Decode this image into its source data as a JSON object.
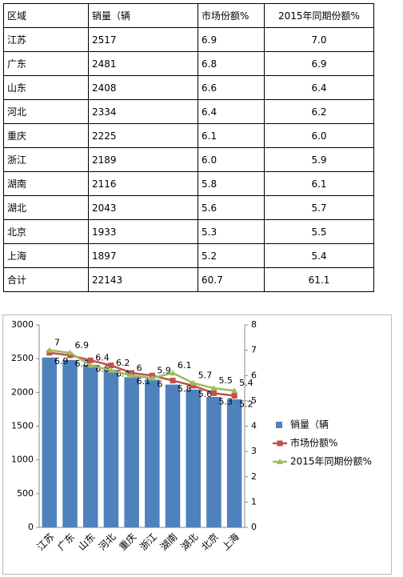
{
  "table": {
    "header": [
      "区域",
      "销量（辆",
      "市场份额%",
      "2015年同期份额%"
    ],
    "rows": [
      [
        "江苏",
        "2517",
        "6.9",
        "7.0"
      ],
      [
        "广东",
        "2481",
        "6.8",
        "6.9"
      ],
      [
        "山东",
        "2408",
        "6.6",
        "6.4"
      ],
      [
        "河北",
        "2334",
        "6.4",
        "6.2"
      ],
      [
        "重庆",
        "2225",
        "6.1",
        "6.0"
      ],
      [
        "浙江",
        "2189",
        "6.0",
        "5.9"
      ],
      [
        "湖南",
        "2116",
        "5.8",
        "6.1"
      ],
      [
        "湖北",
        "2043",
        "5.6",
        "5.7"
      ],
      [
        "北京",
        "1933",
        "5.3",
        "5.5"
      ],
      [
        "上海",
        "1897",
        "5.2",
        "5.4"
      ],
      [
        "合计",
        "22143",
        "60.7",
        "61.1"
      ]
    ]
  },
  "chart_data": {
    "type": "bar",
    "categories": [
      "江苏",
      "广东",
      "山东",
      "河北",
      "重庆",
      "浙江",
      "湖南",
      "湖北",
      "北京",
      "上海"
    ],
    "series": [
      {
        "name": "销量（辆",
        "color": "#4f81bd",
        "type": "bar",
        "values": [
          2517,
          2481,
          2408,
          2334,
          2225,
          2189,
          2116,
          2043,
          1933,
          1897
        ]
      },
      {
        "name": "市场份额%",
        "color": "#c0504d",
        "type": "line",
        "marker": "square",
        "axis": "y2",
        "values": [
          6.9,
          6.8,
          6.6,
          6.4,
          6.1,
          6.0,
          5.8,
          5.6,
          5.3,
          5.2
        ]
      },
      {
        "name": "2015年同期份额%",
        "color": "#9bbb59",
        "type": "line",
        "marker": "triangle",
        "axis": "y2",
        "values": [
          7.0,
          6.9,
          6.4,
          6.2,
          6.0,
          5.9,
          6.1,
          5.7,
          5.5,
          5.4
        ]
      }
    ],
    "ylim": [
      0,
      3000
    ],
    "yticks": [
      0,
      500,
      1000,
      1500,
      2000,
      2500,
      3000
    ],
    "y2lim": [
      0,
      8
    ],
    "y2ticks": [
      0,
      1,
      2,
      3,
      4,
      5,
      6,
      7,
      8
    ],
    "grid": false,
    "legend": "right"
  }
}
